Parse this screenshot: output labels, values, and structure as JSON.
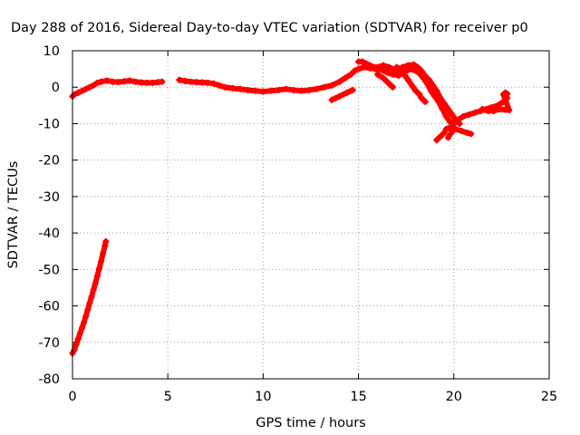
{
  "chart_data": {
    "type": "scatter",
    "title": "Day 288 of 2016, Sidereal Day-to-day VTEC variation (SDTVAR) for receiver p0",
    "xlabel": "GPS time / hours",
    "ylabel": "SDTVAR / TECUs",
    "xlim": [
      0,
      25
    ],
    "ylim": [
      -80,
      10
    ],
    "xticks": [
      0,
      5,
      10,
      15,
      20,
      25
    ],
    "yticks": [
      10,
      0,
      -10,
      -20,
      -30,
      -40,
      -50,
      -60,
      -70,
      -80
    ],
    "grid": true,
    "marker_color": "#ff0000",
    "series": [
      {
        "points": [
          [
            0.0,
            -73.0
          ],
          [
            0.1,
            -72.0
          ],
          [
            0.2,
            -70.5
          ],
          [
            0.3,
            -69.0
          ],
          [
            0.4,
            -67.5
          ],
          [
            0.5,
            -66.0
          ],
          [
            0.6,
            -64.5
          ],
          [
            0.7,
            -62.8
          ],
          [
            0.8,
            -61.0
          ],
          [
            0.9,
            -59.2
          ],
          [
            1.0,
            -57.5
          ],
          [
            1.1,
            -55.6
          ],
          [
            1.2,
            -53.8
          ],
          [
            1.3,
            -51.8
          ],
          [
            1.4,
            -49.8
          ],
          [
            1.5,
            -47.8
          ],
          [
            1.6,
            -45.6
          ],
          [
            1.7,
            -43.5
          ],
          [
            1.75,
            -42.3
          ]
        ]
      },
      {
        "points": [
          [
            0.0,
            -2.5
          ],
          [
            0.1,
            -2.0
          ],
          [
            0.3,
            -1.5
          ],
          [
            0.5,
            -1.0
          ],
          [
            0.7,
            -0.5
          ],
          [
            0.9,
            0.0
          ],
          [
            1.1,
            0.5
          ],
          [
            1.3,
            1.2
          ],
          [
            1.5,
            1.5
          ],
          [
            1.8,
            1.8
          ],
          [
            2.1,
            1.5
          ],
          [
            2.4,
            1.4
          ],
          [
            2.7,
            1.6
          ],
          [
            3.0,
            1.8
          ],
          [
            3.3,
            1.5
          ],
          [
            3.6,
            1.3
          ],
          [
            3.9,
            1.2
          ],
          [
            4.2,
            1.2
          ],
          [
            4.5,
            1.4
          ],
          [
            4.7,
            1.5
          ],
          [
            5.6,
            2.0
          ],
          [
            5.9,
            1.7
          ],
          [
            6.2,
            1.5
          ],
          [
            6.5,
            1.4
          ],
          [
            6.8,
            1.3
          ],
          [
            7.1,
            1.2
          ],
          [
            7.4,
            1.0
          ],
          [
            7.7,
            0.5
          ],
          [
            8.0,
            0.0
          ],
          [
            8.4,
            -0.3
          ],
          [
            8.8,
            -0.5
          ],
          [
            9.2,
            -0.8
          ],
          [
            9.6,
            -1.0
          ],
          [
            10.0,
            -1.2
          ],
          [
            10.4,
            -1.0
          ],
          [
            10.8,
            -0.8
          ],
          [
            11.2,
            -0.5
          ],
          [
            11.6,
            -0.8
          ],
          [
            12.0,
            -1.0
          ],
          [
            12.4,
            -0.8
          ],
          [
            12.8,
            -0.5
          ],
          [
            13.2,
            0.0
          ],
          [
            13.6,
            0.5
          ],
          [
            14.0,
            1.5
          ],
          [
            14.3,
            2.5
          ],
          [
            14.6,
            3.5
          ],
          [
            14.8,
            4.5
          ],
          [
            15.0,
            5.0
          ],
          [
            15.3,
            5.5
          ],
          [
            15.6,
            5.2
          ],
          [
            15.9,
            5.0
          ],
          [
            16.2,
            4.8
          ],
          [
            16.5,
            4.0
          ],
          [
            16.8,
            3.5
          ],
          [
            17.1,
            3.2
          ],
          [
            17.4,
            4.0
          ],
          [
            17.7,
            5.0
          ],
          [
            18.0,
            4.5
          ],
          [
            18.2,
            3.8
          ],
          [
            18.4,
            2.5
          ],
          [
            18.6,
            1.0
          ],
          [
            18.8,
            -1.0
          ],
          [
            19.0,
            -2.5
          ],
          [
            19.2,
            -4.0
          ],
          [
            19.4,
            -6.0
          ],
          [
            19.6,
            -8.0
          ],
          [
            19.8,
            -9.5
          ],
          [
            20.0,
            -10.0
          ],
          [
            20.2,
            -9.0
          ],
          [
            20.5,
            -8.0
          ],
          [
            20.8,
            -7.5
          ],
          [
            21.1,
            -7.0
          ],
          [
            21.4,
            -6.5
          ],
          [
            21.7,
            -6.0
          ],
          [
            22.0,
            -5.5
          ],
          [
            22.3,
            -5.0
          ],
          [
            22.6,
            -4.0
          ],
          [
            22.8,
            -3.0
          ]
        ]
      },
      {
        "points": [
          [
            13.6,
            -3.5
          ],
          [
            13.8,
            -3.0
          ],
          [
            14.0,
            -2.5
          ],
          [
            14.2,
            -2.0
          ],
          [
            14.4,
            -1.5
          ],
          [
            14.6,
            -1.0
          ],
          [
            14.7,
            -0.8
          ]
        ]
      },
      {
        "points": [
          [
            15.0,
            7.0
          ],
          [
            15.2,
            7.0
          ],
          [
            15.4,
            6.5
          ],
          [
            15.6,
            6.0
          ],
          [
            15.8,
            5.5
          ],
          [
            16.0,
            5.5
          ],
          [
            16.3,
            6.0
          ],
          [
            16.6,
            5.5
          ],
          [
            16.8,
            5.0
          ],
          [
            17.0,
            4.5
          ],
          [
            17.3,
            5.5
          ],
          [
            17.6,
            6.0
          ],
          [
            17.9,
            6.2
          ],
          [
            18.1,
            5.5
          ],
          [
            18.3,
            4.5
          ],
          [
            18.5,
            3.0
          ],
          [
            18.7,
            2.0
          ],
          [
            18.9,
            0.5
          ],
          [
            19.1,
            -1.0
          ],
          [
            19.3,
            -3.0
          ],
          [
            19.5,
            -4.5
          ],
          [
            19.7,
            -6.0
          ],
          [
            19.9,
            -7.5
          ],
          [
            20.1,
            -9.0
          ],
          [
            20.3,
            -10.0
          ]
        ]
      },
      {
        "points": [
          [
            17.0,
            5.5
          ],
          [
            17.2,
            5.0
          ],
          [
            17.4,
            3.5
          ],
          [
            17.6,
            2.0
          ],
          [
            17.8,
            0.5
          ],
          [
            18.0,
            -1.0
          ],
          [
            18.2,
            -2.0
          ],
          [
            18.3,
            -3.0
          ],
          [
            18.5,
            -4.0
          ]
        ]
      },
      {
        "points": [
          [
            16.0,
            3.5
          ],
          [
            16.3,
            2.5
          ],
          [
            16.6,
            1.0
          ],
          [
            16.8,
            0.0
          ]
        ]
      },
      {
        "points": [
          [
            19.1,
            -14.5
          ],
          [
            19.3,
            -13.5
          ],
          [
            19.5,
            -12.5
          ],
          [
            19.6,
            -11.5
          ],
          [
            19.8,
            -11.0
          ],
          [
            20.1,
            -11.5
          ],
          [
            20.4,
            -12.0
          ],
          [
            20.7,
            -12.5
          ],
          [
            20.9,
            -12.8
          ],
          [
            19.7,
            -13.8
          ],
          [
            19.9,
            -12.2
          ],
          [
            20.0,
            -11.8
          ]
        ]
      },
      {
        "points": [
          [
            21.5,
            -6.0
          ],
          [
            21.8,
            -6.5
          ],
          [
            22.1,
            -6.5
          ],
          [
            22.4,
            -6.0
          ],
          [
            22.7,
            -6.2
          ],
          [
            22.9,
            -6.3
          ],
          [
            22.6,
            -2.0
          ],
          [
            22.7,
            -1.5
          ],
          [
            22.8,
            -1.8
          ]
        ]
      }
    ]
  }
}
